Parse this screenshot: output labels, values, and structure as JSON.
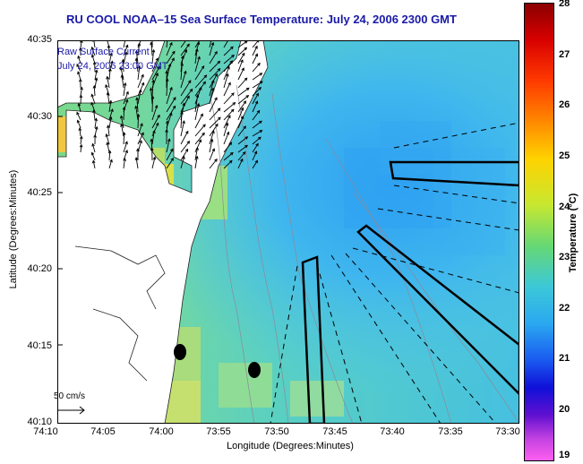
{
  "title": "RU COOL   NOAA–15   Sea Surface Temperature:   July 24, 2006 2300 GMT",
  "inset": {
    "line1": "Raw Surface Current",
    "line2": "July 24, 2006 23:00 GMT"
  },
  "axes": {
    "ylabel": "Latitude (Degrees:Minutes)",
    "xlabel": "Longitude (Degrees:Minutes)",
    "yticks": [
      "40:35",
      "40:30",
      "40:25",
      "40:20",
      "40:15",
      "40:10"
    ],
    "xticks": [
      "74:10",
      "74:05",
      "74:00",
      "73:55",
      "73:50",
      "73:45",
      "73:40",
      "73:35",
      "73:30"
    ]
  },
  "scale": {
    "label": "50 cm/s"
  },
  "colorbar": {
    "label": "Temperature (°C)",
    "ticks": [
      "28",
      "27",
      "26",
      "25",
      "24",
      "23",
      "22",
      "21",
      "20",
      "19"
    ],
    "range": [
      19,
      28
    ]
  },
  "colors": {
    "title": "#1a1aa8",
    "land": "#ffffff",
    "frame": "#000000"
  }
}
